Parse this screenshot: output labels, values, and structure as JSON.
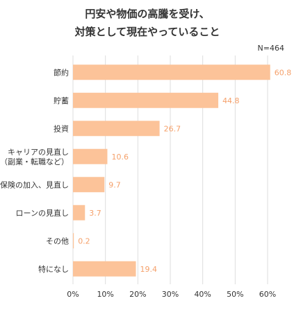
{
  "chart_data": {
    "type": "bar",
    "orientation": "horizontal",
    "title_lines": [
      "円安や物価の高騰を受け、",
      "対策として現在やっていること"
    ],
    "note": "N=464",
    "categories": [
      [
        "節約"
      ],
      [
        "貯蓄"
      ],
      [
        "投資"
      ],
      [
        "キャリアの見直し",
        "（副業・転職など）"
      ],
      [
        "保険の加入、見直し"
      ],
      [
        "ローンの見直し"
      ],
      [
        "その他"
      ],
      [
        "特になし"
      ]
    ],
    "values": [
      60.8,
      44.8,
      26.7,
      10.6,
      9.7,
      3.7,
      0.2,
      19.4
    ],
    "value_labels": [
      "60.8",
      "44.8",
      "26.7",
      "10.6",
      "9.7",
      "3.7",
      "0.2",
      "19.4"
    ],
    "xlim": [
      0,
      60
    ],
    "ticks": [
      0,
      10,
      20,
      30,
      40,
      50,
      60
    ],
    "tick_labels": [
      "0%",
      "10%",
      "20%",
      "30%",
      "40%",
      "50%",
      "60%"
    ],
    "grid": true,
    "colors": {
      "bar": "#fcc399",
      "label": "#f5a06a",
      "grid": "#dddddd",
      "text": "#333333"
    }
  }
}
